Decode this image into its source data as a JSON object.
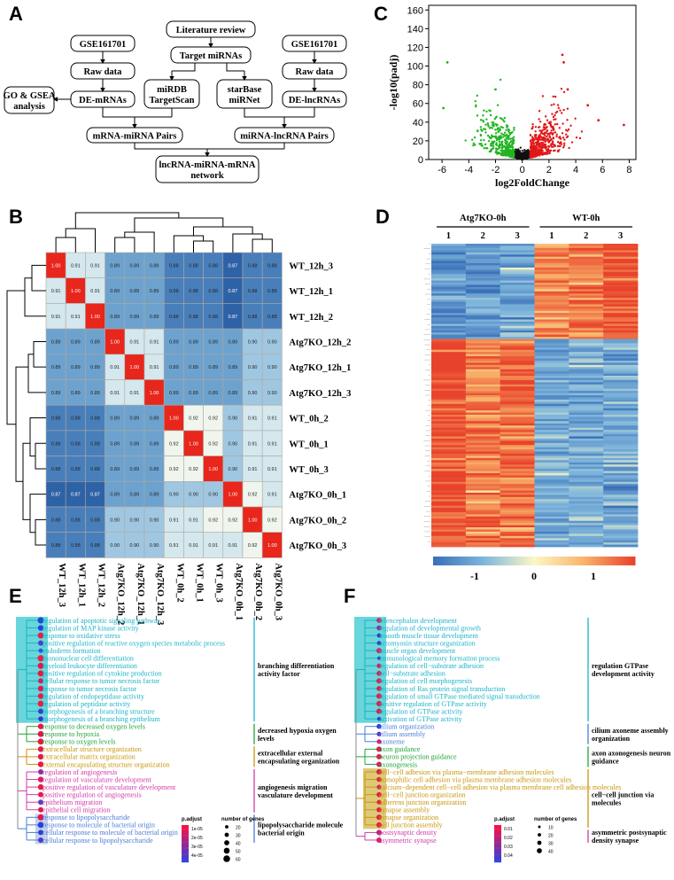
{
  "panels": {
    "A": "A",
    "B": "B",
    "C": "C",
    "D": "D",
    "E": "E",
    "F": "F"
  },
  "flowchart": {
    "literature": "Literature review",
    "target": "Target miRNAs",
    "gse_left": "GSE161701",
    "gse_right": "GSE161701",
    "raw_left": "Raw data",
    "raw_right": "Raw data",
    "go_gsea_1": "GO & GSEA",
    "go_gsea_2": "analysis",
    "de_mrnas": "DE-mRNAs",
    "de_lncrnas": "DE-lncRNAs",
    "mirdb_1": "miRDB",
    "mirdb_2": "TargetScan",
    "starbase_1": "starBase",
    "starbase_2": "miRNet",
    "mrna_pairs": "mRNA-miRNA Pairs",
    "lnc_pairs": "miRNA-lncRNA Pairs",
    "network_1": "lncRNA-miRNA-mRNA",
    "network_2": "network"
  },
  "chart_data": [
    {
      "type": "scatter",
      "panel": "C",
      "title": "",
      "xlabel": "log2FoldChange",
      "ylabel": "-log10(padj)",
      "xlim": [
        -7,
        8.5
      ],
      "ylim": [
        0,
        165
      ],
      "xticks": [
        -6,
        -4,
        -2,
        0,
        2,
        4,
        6,
        8
      ],
      "yticks": [
        0,
        20,
        40,
        60,
        80,
        100,
        120,
        140,
        160
      ],
      "ytick_labels": [
        "0",
        "20",
        "40",
        "60",
        "80",
        "100",
        "120",
        "140",
        "160"
      ],
      "colors": {
        "down": "#22b522",
        "ns": "#111111",
        "up": "#e01818"
      },
      "highlight_points": [
        {
          "x": -5.6,
          "y": 104,
          "group": "down"
        },
        {
          "x": -2.0,
          "y": 75,
          "group": "down"
        },
        {
          "x": -5.9,
          "y": 55,
          "group": "down"
        },
        {
          "x": 3.0,
          "y": 112,
          "group": "up"
        },
        {
          "x": 3.1,
          "y": 104,
          "group": "up"
        },
        {
          "x": 3.4,
          "y": 75,
          "group": "up"
        },
        {
          "x": 7.6,
          "y": 37,
          "group": "up"
        },
        {
          "x": 4.9,
          "y": 58,
          "group": "up"
        },
        {
          "x": 5.7,
          "y": 42,
          "group": "up"
        }
      ]
    },
    {
      "type": "heatmap",
      "panel": "B",
      "samples": [
        "WT_12h_3",
        "WT_12h_1",
        "WT_12h_2",
        "Atg7KO_12h_2",
        "Atg7KO_12h_1",
        "Atg7KO_12h_3",
        "WT_0h_2",
        "WT_0h_1",
        "WT_0h_3",
        "Atg7KO_0h_1",
        "Atg7KO_0h_2",
        "Atg7KO_0h_3"
      ],
      "values": [
        [
          1.0,
          0.91,
          0.91,
          0.89,
          0.89,
          0.89,
          0.88,
          0.88,
          0.88,
          0.87,
          0.88,
          0.88
        ],
        [
          0.91,
          1.0,
          0.91,
          0.89,
          0.89,
          0.89,
          0.88,
          0.88,
          0.88,
          0.87,
          0.88,
          0.88
        ],
        [
          0.91,
          0.91,
          1.0,
          0.89,
          0.89,
          0.89,
          0.88,
          0.88,
          0.88,
          0.87,
          0.88,
          0.88
        ],
        [
          0.89,
          0.89,
          0.89,
          1.0,
          0.91,
          0.91,
          0.89,
          0.89,
          0.89,
          0.89,
          0.9,
          0.9
        ],
        [
          0.89,
          0.89,
          0.89,
          0.91,
          1.0,
          0.91,
          0.89,
          0.89,
          0.89,
          0.89,
          0.9,
          0.9
        ],
        [
          0.89,
          0.89,
          0.89,
          0.91,
          0.91,
          1.0,
          0.89,
          0.89,
          0.89,
          0.89,
          0.9,
          0.9
        ],
        [
          0.88,
          0.88,
          0.88,
          0.89,
          0.89,
          0.89,
          1.0,
          0.92,
          0.92,
          0.9,
          0.91,
          0.91
        ],
        [
          0.88,
          0.88,
          0.88,
          0.89,
          0.89,
          0.89,
          0.92,
          1.0,
          0.92,
          0.9,
          0.91,
          0.91
        ],
        [
          0.88,
          0.88,
          0.88,
          0.89,
          0.89,
          0.89,
          0.92,
          0.92,
          1.0,
          0.9,
          0.91,
          0.91
        ],
        [
          0.87,
          0.87,
          0.87,
          0.89,
          0.89,
          0.89,
          0.9,
          0.9,
          0.9,
          1.0,
          0.92,
          0.91
        ],
        [
          0.88,
          0.88,
          0.88,
          0.9,
          0.9,
          0.9,
          0.91,
          0.91,
          0.92,
          0.92,
          1.0,
          0.92
        ],
        [
          0.88,
          0.88,
          0.88,
          0.9,
          0.9,
          0.9,
          0.91,
          0.91,
          0.91,
          0.91,
          0.92,
          1.0
        ]
      ]
    },
    {
      "type": "heatmap",
      "panel": "D",
      "groups": [
        {
          "name": "Atg7KO-0h",
          "replicates": [
            "1",
            "2",
            "3"
          ]
        },
        {
          "name": "WT-0h",
          "replicates": [
            "1",
            "2",
            "3"
          ]
        }
      ],
      "clusters": [
        {
          "name": "upper",
          "rows": 44,
          "profile": [
            -0.75,
            -0.7,
            -0.6,
            0.65,
            0.75,
            0.9
          ]
        },
        {
          "name": "lower",
          "rows": 96,
          "profile": [
            0.95,
            0.7,
            0.8,
            -0.6,
            -0.6,
            -0.6
          ]
        }
      ],
      "colorbar": {
        "min": -1.7,
        "max": 1.7,
        "ticks": [
          "-1",
          "0",
          "1"
        ]
      }
    },
    {
      "type": "dotplot",
      "panel": "E",
      "terms": [
        "regulation of apoptotic signaling pathway",
        "regulation of MAP kinase activity",
        "response to oxidative stress",
        "positive regulation of reactive oxygen species metabolic process",
        "endoderm formation",
        "mononuclear cell differentiation",
        "myeloid leukocyte differentiation",
        "positive regulation of cytokine production",
        "cellular response to tumor necrosis factor",
        "response to tumor necrosis factor",
        "regulation of endopeptidase activity",
        "regulation of peptidase activity",
        "morphogenesis of a branching structure",
        "morphogenesis of a branching epithelium",
        "response to decreased oxygen levels",
        "response to hypoxia",
        "response to oxygen levels",
        "extracellular structure organization",
        "extracellular matrix organization",
        "external encapsulating structure organization",
        "regulation of angiogenesis",
        "regulation of vasculature development",
        "positive regulation of vasculature development",
        "positive regulation of angiogenesis",
        "epithelium migration",
        "epithelial cell migration",
        "response to lipopolysaccharide",
        "response to molecule of bacterial origin",
        "cellular response to molecule of bacterial origin",
        "cellular response to lipopolysaccharide"
      ],
      "term_groups": [
        0,
        0,
        0,
        0,
        0,
        0,
        0,
        0,
        0,
        0,
        0,
        0,
        0,
        0,
        1,
        1,
        1,
        2,
        2,
        2,
        3,
        3,
        3,
        3,
        3,
        3,
        4,
        4,
        4,
        4
      ],
      "padj_colors": [
        "#1a4fd0",
        "#2a3fe0",
        "#e0204a",
        "#4a3fd0",
        "#2060e0",
        "#e82048",
        "#e01850",
        "#e81840",
        "#d02060",
        "#e01858",
        "#e02040",
        "#e82040",
        "#3040d0",
        "#4030c8",
        "#e81848",
        "#e01850",
        "#e81838",
        "#d82050",
        "#e01850",
        "#e81848",
        "#9030a0",
        "#d82060",
        "#e02048",
        "#e81848",
        "#6040c0",
        "#e01850",
        "#e01848",
        "#2040e0",
        "#2a40d8",
        "#5038c8"
      ],
      "gene_counts": [
        55,
        45,
        50,
        40,
        30,
        55,
        50,
        50,
        40,
        45,
        45,
        50,
        40,
        35,
        45,
        50,
        50,
        45,
        45,
        45,
        40,
        45,
        45,
        40,
        40,
        40,
        50,
        50,
        40,
        40
      ],
      "clusters": [
        [
          "branching differentiation",
          "activity factor"
        ],
        [
          "decreased hypoxia oxygen",
          "levels"
        ],
        [
          "extracellular external",
          "encapsulating organization"
        ],
        [
          "angiogenesis migration",
          "vasculature development"
        ],
        [
          "lipopolysaccharide molecule",
          "bacterial origin"
        ]
      ],
      "legend_padj": {
        "title": "p.adjust",
        "labels": [
          "1e-05",
          "2e-05",
          "3e-05",
          "4e-05"
        ]
      },
      "legend_genes": {
        "title": "number of genes",
        "labels": [
          "20",
          "30",
          "40",
          "50",
          "60"
        ]
      }
    },
    {
      "type": "dotplot",
      "panel": "F",
      "terms": [
        "telencephalon development",
        "regulation of developmental growth",
        "smooth muscle tissue development",
        "actomyosin structure organization",
        "muscle organ development",
        "immunological memory formation process",
        "regulation of cell−substrate adhesion",
        "cell−substrate adhesion",
        "regulation of cell morphogenesis",
        "regulation of Ras protein signal transduction",
        "regulation of small GTPase mediated signal transduction",
        "positive regulation of GTPase activity",
        "regulation of GTPase activity",
        "activation of GTPase activity",
        "cilium organization",
        "cilium assembly",
        "axoneme",
        "axon guidance",
        "neuron projection guidance",
        "axonogenesis",
        "cell−cell adhesion via plasma−membrane adhesion molecules",
        "homophilic cell adhesion via plasma membrane adhesion molecules",
        "calcium−dependent cell−cell adhesion via plasma membrane cell adhesion molecules",
        "cell−cell junction organization",
        "adherens junction organization",
        "synapse assembly",
        "synapse organization",
        "cell junction assembly",
        "postsynaptic density",
        "asymmetric synapse"
      ],
      "term_groups": [
        0,
        0,
        0,
        0,
        0,
        0,
        0,
        0,
        0,
        0,
        0,
        0,
        0,
        0,
        1,
        1,
        1,
        2,
        2,
        2,
        3,
        3,
        3,
        3,
        3,
        3,
        3,
        3,
        4,
        4
      ],
      "padj_colors": [
        "#d02060",
        "#9030a0",
        "#2040d0",
        "#4038c8",
        "#d82060",
        "#1a4fd0",
        "#e01850",
        "#d82060",
        "#e02048",
        "#e01850",
        "#e81848",
        "#e81840",
        "#e01848",
        "#3040d0",
        "#2a40d8",
        "#5038c8",
        "#e02048",
        "#e01850",
        "#e81848",
        "#d82060",
        "#e01850",
        "#e02048",
        "#d82060",
        "#e01850",
        "#e81848",
        "#e01850",
        "#e02048",
        "#e81848",
        "#b02880",
        "#d82060"
      ],
      "gene_counts": [
        35,
        35,
        25,
        25,
        40,
        15,
        30,
        35,
        40,
        35,
        40,
        40,
        40,
        20,
        35,
        30,
        30,
        40,
        40,
        40,
        40,
        35,
        30,
        35,
        30,
        35,
        40,
        40,
        40,
        40
      ],
      "clusters": [
        [
          "regulation GTPase",
          "development activity"
        ],
        [
          "cilium axoneme assembly",
          "organization"
        ],
        [
          "axon axonogenesis neuron",
          "guidance"
        ],
        [
          "cell−cell junction via",
          "molecules"
        ],
        [
          "asymmetric postsynaptic",
          "density synapse"
        ]
      ],
      "legend_padj": {
        "title": "p.adjust",
        "labels": [
          "0.01",
          "0.02",
          "0.03",
          "0.04"
        ]
      },
      "legend_genes": {
        "title": "number of genes",
        "labels": [
          "10",
          "20",
          "30",
          "40"
        ]
      }
    }
  ]
}
